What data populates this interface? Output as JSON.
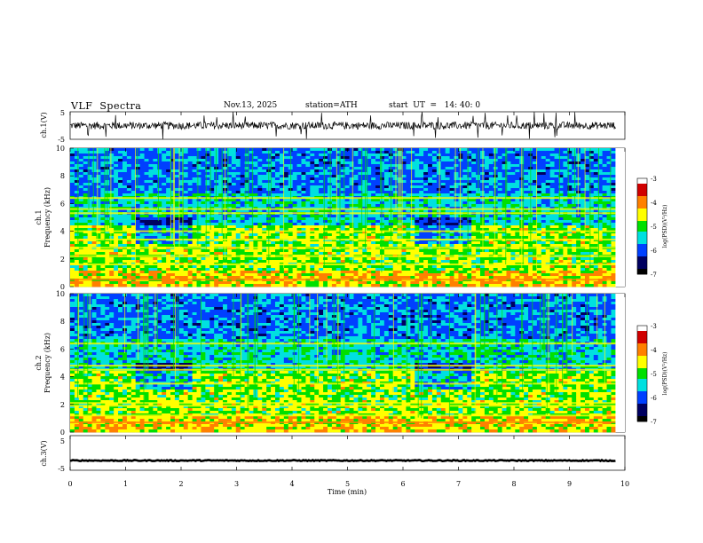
{
  "header": {
    "title": "VLF  Spectra",
    "date": "Nov.13, 2025",
    "station": "station=ATH",
    "start": "start  UT  =   14: 40: 0"
  },
  "colors": {
    "colormap": [
      "#ffffff",
      "#d00000",
      "#ff8000",
      "#ffff00",
      "#00e000",
      "#00e0e0",
      "#0040ff",
      "#000060",
      "#000000"
    ]
  },
  "chart_data": [
    {
      "type": "line",
      "name": "ch1-waveform",
      "ylabel": "ch.1(V)",
      "ylim": [
        -5,
        5
      ],
      "yticks": [
        "5",
        "-5"
      ],
      "x_range_min": [
        0,
        10
      ],
      "data_end_min": 9.83,
      "baseline_v": 0,
      "approx_noise_v": [
        -1.5,
        1.5
      ],
      "spikes_v": [
        -5,
        5
      ]
    },
    {
      "type": "heatmap",
      "name": "ch1-spectrogram",
      "ylabel": "ch.1\nFrequency (kHz)",
      "ylim_khz": [
        0,
        10
      ],
      "yticks": [
        "0",
        "2",
        "4",
        "6",
        "8",
        "10"
      ],
      "colorbar": {
        "label": "log(PSD)(V²/Hz)",
        "range": [
          -7,
          -3
        ],
        "ticks": [
          "-3",
          "-4",
          "-5",
          "-6",
          "-7"
        ]
      },
      "bands_khz": [
        0.5,
        1.6,
        2.2,
        2.8,
        3.4,
        4.0,
        5.3,
        5.6,
        6.4
      ],
      "quiet_intervals_min": [
        [
          1.2,
          2.2
        ],
        [
          6.2,
          7.2
        ]
      ]
    },
    {
      "type": "heatmap",
      "name": "ch2-spectrogram",
      "ylabel": "ch.2\nFrequency (kHz)",
      "ylim_khz": [
        0,
        10
      ],
      "yticks": [
        "0",
        "2",
        "4",
        "6",
        "8",
        "10"
      ],
      "colorbar": {
        "label": "log(PSD)(V²/Hz)",
        "range": [
          -7,
          -3
        ],
        "ticks": [
          "-3",
          "-4",
          "-5",
          "-6",
          "-7"
        ]
      },
      "bands_khz": [
        0.7,
        1.2,
        1.9,
        2.1,
        3.5,
        4.5,
        4.8,
        6.4
      ],
      "quiet_intervals_min": [
        [
          1.2,
          2.2
        ],
        [
          6.2,
          7.2
        ]
      ]
    },
    {
      "type": "line",
      "name": "ch3-waveform",
      "ylabel": "ch.3(V)",
      "ylim": [
        -5,
        5
      ],
      "yticks": [
        "5",
        "-5"
      ],
      "baseline_v": -2.2,
      "approx_noise_v": [
        -2.5,
        -1.9
      ]
    }
  ],
  "x_axis": {
    "label": "Time  (min)",
    "ticks": [
      "0",
      "1",
      "2",
      "3",
      "4",
      "5",
      "6",
      "7",
      "8",
      "9",
      "10"
    ],
    "range": [
      0,
      10
    ]
  }
}
